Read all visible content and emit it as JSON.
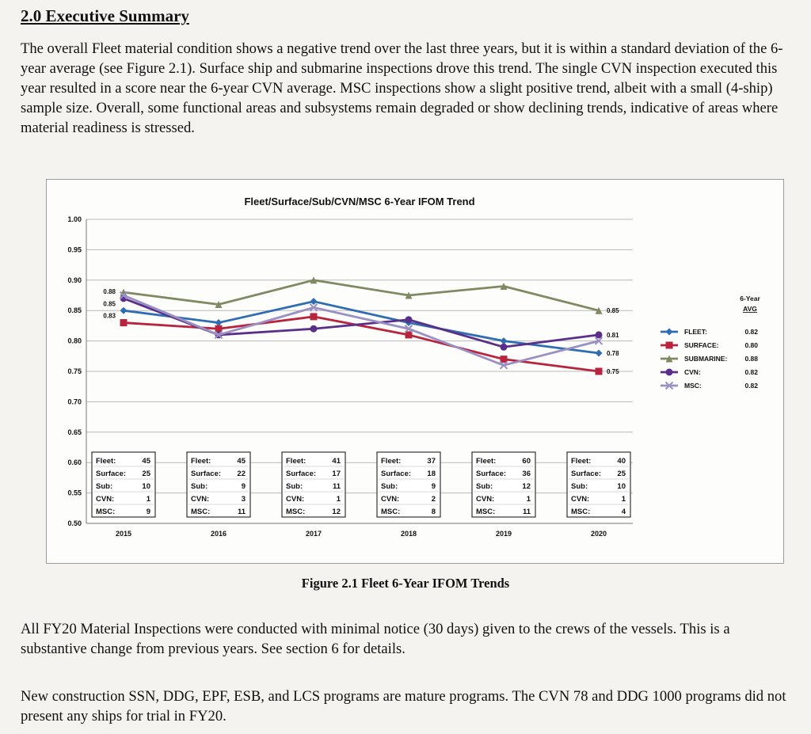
{
  "document": {
    "heading": "2.0 Executive Summary",
    "paragraph_1": "The overall Fleet material condition shows a negative trend over the last three years, but it is within a standard deviation of the 6-year average (see Figure 2.1). Surface ship and submarine inspections drove this trend. The single CVN inspection executed this year resulted in a score near the 6-year CVN average. MSC inspections show a slight positive trend, albeit with a small (4-ship) sample size. Overall, some functional areas and subsystems remain degraded or show declining trends, indicative of areas where material readiness is stressed.",
    "figure_caption": "Figure 2.1 Fleet 6-Year IFOM Trends",
    "paragraph_2": "All FY20 Material Inspections were conducted with minimal notice (30 days) given to the crews of the vessels. This is a substantive change from previous years. See section 6 for details.",
    "paragraph_3": "New construction SSN, DDG, EPF, ESB, and LCS programs are mature programs. The CVN 78 and DDG 1000 programs did not present any ships for trial in FY20."
  },
  "chart_data": {
    "type": "line",
    "title": "Fleet/Surface/Sub/CVN/MSC 6-Year IFOM Trend",
    "xlabel": "",
    "ylabel": "",
    "ylim": [
      0.5,
      1.0
    ],
    "yticks": [
      "0.50",
      "0.55",
      "0.60",
      "0.65",
      "0.70",
      "0.75",
      "0.80",
      "0.85",
      "0.90",
      "0.95",
      "1.00"
    ],
    "categories": [
      "2015",
      "2016",
      "2017",
      "2018",
      "2019",
      "2020"
    ],
    "series": [
      {
        "name": "FLEET:",
        "avg": "0.82",
        "color": "#2f6db3",
        "marker": "diamond",
        "values": [
          0.85,
          0.83,
          0.865,
          0.83,
          0.8,
          0.78
        ]
      },
      {
        "name": "SURFACE:",
        "avg": "0.80",
        "color": "#b8233e",
        "marker": "square",
        "values": [
          0.83,
          0.82,
          0.84,
          0.81,
          0.77,
          0.75
        ]
      },
      {
        "name": "SUBMARINE:",
        "avg": "0.88",
        "color": "#7f8a62",
        "marker": "triangle",
        "values": [
          0.88,
          0.86,
          0.9,
          0.875,
          0.89,
          0.85
        ]
      },
      {
        "name": "CVN:",
        "avg": "0.82",
        "color": "#5a2f8a",
        "marker": "circle",
        "values": [
          0.87,
          0.81,
          0.82,
          0.835,
          0.79,
          0.81
        ]
      },
      {
        "name": "MSC:",
        "avg": "0.82",
        "color": "#9a90c4",
        "marker": "cross",
        "values": [
          0.875,
          0.81,
          0.855,
          0.82,
          0.76,
          0.8
        ]
      }
    ],
    "start_labels": [
      "0.88",
      "0.85",
      "0.83"
    ],
    "end_labels": [
      "0.85",
      "0.81",
      "0.78",
      "0.75"
    ],
    "legend_header": [
      "6-Year",
      "AVG"
    ],
    "inspection_counts": [
      {
        "year": "2015",
        "Fleet": "45",
        "Surface": "25",
        "Sub": "10",
        "CVN": "1",
        "MSC": "9"
      },
      {
        "year": "2016",
        "Fleet": "45",
        "Surface": "22",
        "Sub": "9",
        "CVN": "3",
        "MSC": "11"
      },
      {
        "year": "2017",
        "Fleet": "41",
        "Surface": "17",
        "Sub": "11",
        "CVN": "1",
        "MSC": "12"
      },
      {
        "year": "2018",
        "Fleet": "37",
        "Surface": "18",
        "Sub": "9",
        "CVN": "2",
        "MSC": "8"
      },
      {
        "year": "2019",
        "Fleet": "60",
        "Surface": "36",
        "Sub": "12",
        "CVN": "1",
        "MSC": "11"
      },
      {
        "year": "2020",
        "Fleet": "40",
        "Surface": "25",
        "Sub": "10",
        "CVN": "1",
        "MSC": "4"
      }
    ],
    "count_labels": [
      "Fleet:",
      "Surface:",
      "Sub:",
      "CVN:",
      "MSC:"
    ]
  }
}
